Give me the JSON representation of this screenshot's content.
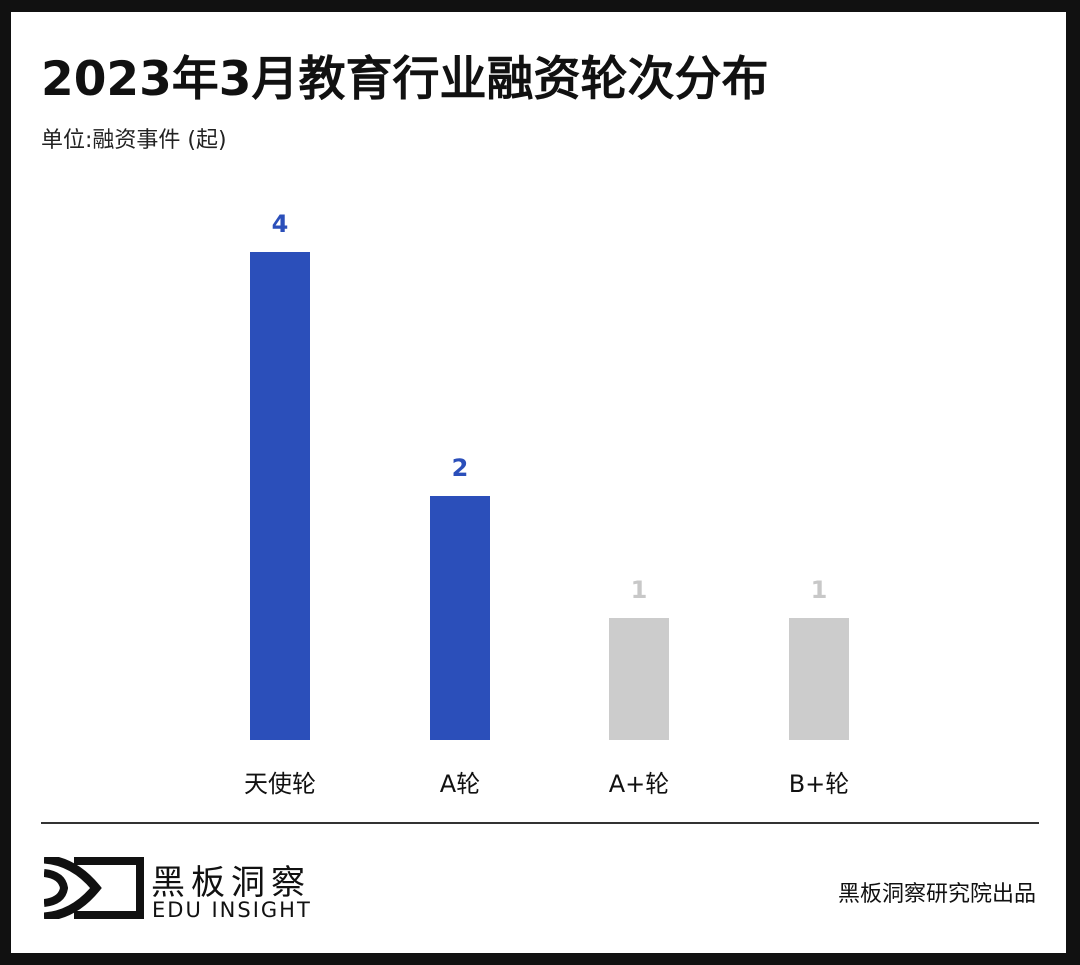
{
  "header": {
    "title": "2023年3月教育行业融资轮次分布",
    "unit": "单位:融资事件 (起)"
  },
  "colors": {
    "highlight": "#2b4fba",
    "muted": "#cccccc",
    "muted_label": "#c8c8c8"
  },
  "chart_data": {
    "type": "bar",
    "title": "2023年3月教育行业融资轮次分布",
    "subtitle": "单位:融资事件 (起)",
    "categories": [
      "天使轮",
      "A轮",
      "A+轮",
      "B+轮"
    ],
    "values": [
      4,
      2,
      1,
      1
    ],
    "bar_colors": [
      "#2b4fba",
      "#2b4fba",
      "#cccccc",
      "#cccccc"
    ],
    "data_labels": [
      "4",
      "2",
      "1",
      "1"
    ],
    "xlabel": "",
    "ylabel": "融资事件 (起)",
    "ylim": [
      0,
      4
    ],
    "grid": false,
    "legend": "none"
  },
  "footer": {
    "brand_cn": "黑板洞察",
    "brand_en": "EDU INSIGHT",
    "credit": "黑板洞察研究院出品"
  }
}
